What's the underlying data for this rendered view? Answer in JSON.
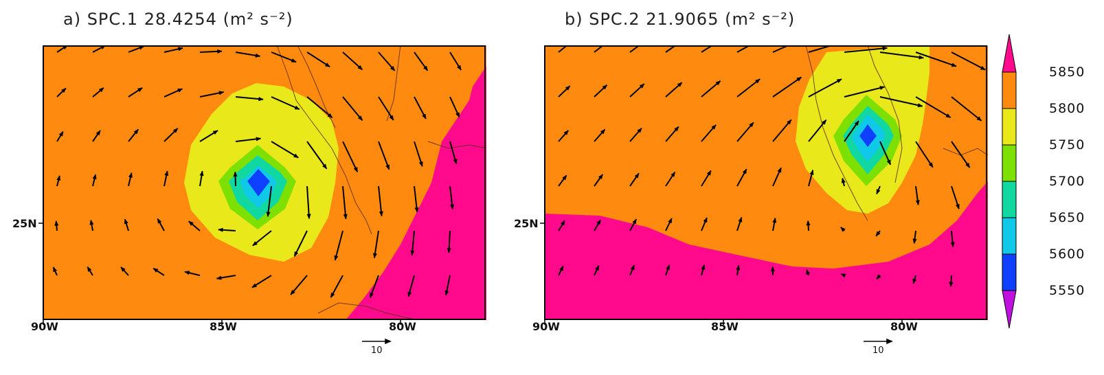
{
  "panels": [
    {
      "id": "a",
      "title": "a) SPC.1 28.4254 (m² s⁻²)"
    },
    {
      "id": "b",
      "title": "b) SPC.2 21.9065 (m² s⁻²)"
    }
  ],
  "axes": {
    "x_ticks": [
      "90W",
      "85W",
      "80W"
    ],
    "y_ticks": [
      "25N"
    ]
  },
  "reference_vector": {
    "label": "10"
  },
  "colorbar": {
    "levels": [
      "5850",
      "5800",
      "5750",
      "5700",
      "5650",
      "5600",
      "5550"
    ],
    "colors": [
      "#ff0a8c",
      "#ff8a10",
      "#e8e81a",
      "#7ee000",
      "#10d8a0",
      "#10c8e8",
      "#1040ff",
      "#c010e0"
    ]
  }
}
